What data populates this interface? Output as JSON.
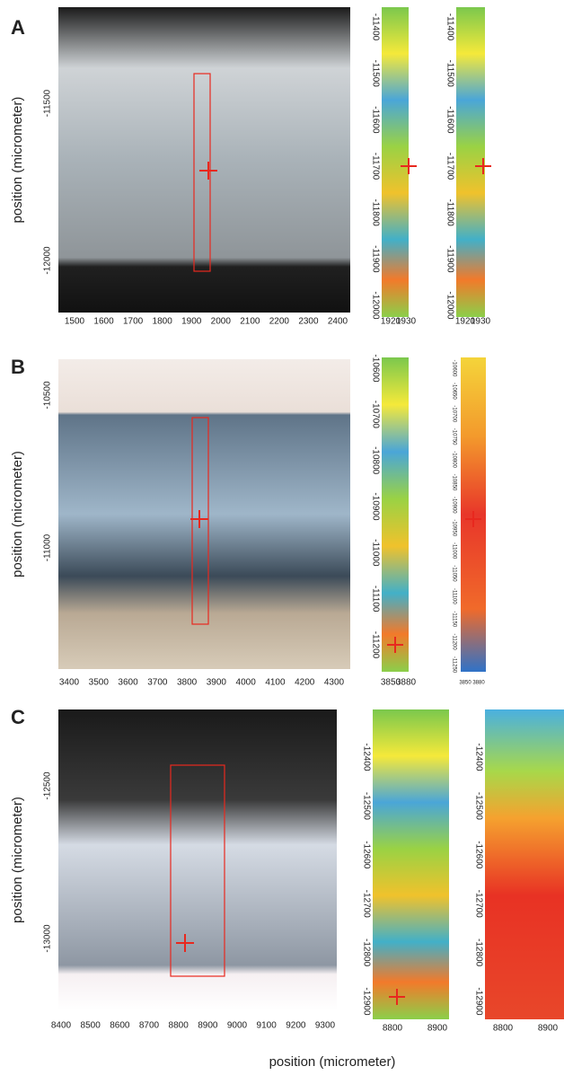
{
  "panels": [
    {
      "label": "A",
      "y_label": "position (micrometer)",
      "image": {
        "xticks": [
          1500,
          1600,
          1700,
          1800,
          1900,
          2000,
          2100,
          2200,
          2300,
          2400
        ],
        "yticks": [
          -11500,
          -12000
        ]
      },
      "maps": [
        {
          "xticks": [
            1920,
            1930
          ],
          "yticks": [
            -11400,
            -11500,
            -11600,
            -11700,
            -11800,
            -11900,
            -12000
          ]
        },
        {
          "xticks": [
            1920,
            1930
          ],
          "yticks": [
            -11400,
            -11500,
            -11600,
            -11700,
            -11800,
            -11900,
            -12000
          ]
        }
      ]
    },
    {
      "label": "B",
      "y_label": "position (micrometer)",
      "image": {
        "xticks": [
          3400,
          3500,
          3600,
          3700,
          3800,
          3900,
          4000,
          4100,
          4200,
          4300
        ],
        "yticks": [
          -10500,
          -11000
        ]
      },
      "maps": [
        {
          "xticks": [
            3850,
            3880
          ],
          "yticks": [
            -10600,
            -10700,
            -10800,
            -10900,
            -11000,
            -11100,
            -11200
          ]
        },
        {
          "xticks": [
            3850,
            3880
          ],
          "yticks": [
            -10600,
            -10650,
            -10700,
            -10750,
            -10800,
            -10850,
            -10900,
            -10950,
            -11000,
            -11050,
            -11100,
            -11150,
            -11200,
            -11250
          ]
        }
      ]
    },
    {
      "label": "C",
      "y_label": "position (micrometer)",
      "image": {
        "xticks": [
          8400,
          8500,
          8600,
          8700,
          8800,
          8900,
          9000,
          9100,
          9200,
          9300
        ],
        "yticks": [
          -12500,
          -13000
        ]
      },
      "maps": [
        {
          "xticks": [
            8800,
            8900
          ],
          "yticks": [
            -12400,
            -12500,
            -12600,
            -12700,
            -12800,
            -12900
          ]
        },
        {
          "xticks": [
            8800,
            8900
          ],
          "yticks": [
            -12400,
            -12500,
            -12600,
            -12700,
            -12800,
            -12900
          ]
        }
      ]
    }
  ],
  "x_label": "position (micrometer)"
}
